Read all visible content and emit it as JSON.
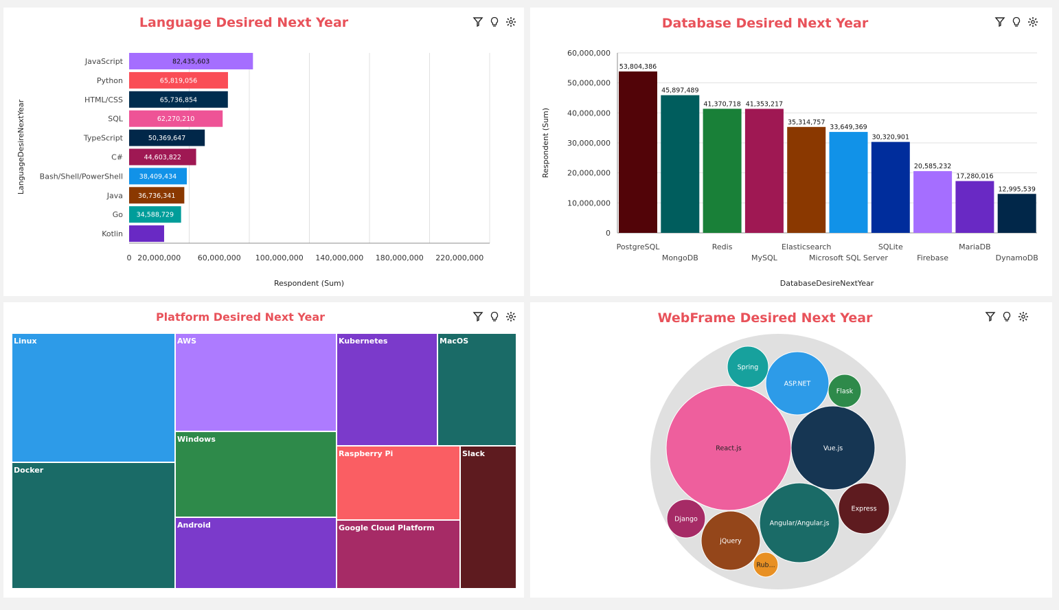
{
  "panels": {
    "language": {
      "title": "Language Desired Next Year"
    },
    "database": {
      "title": "Database Desired Next Year"
    },
    "platform": {
      "title": "Platform Desired Next Year"
    },
    "webframe": {
      "title": "WebFrame Desired Next Year"
    }
  },
  "icons": [
    "filter-icon",
    "lightbulb-icon",
    "settings-icon"
  ],
  "chart_data": [
    {
      "type": "bar",
      "orientation": "horizontal",
      "title": "Language Desired Next Year",
      "xlabel": "Respondent (Sum)",
      "ylabel": "LanguageDesireNextYear",
      "xlim": [
        0,
        240000000
      ],
      "xticks": [
        "0",
        "20,000,000",
        "60,000,000",
        "100,000,000",
        "140,000,000",
        "180,000,000",
        "220,000,000"
      ],
      "categories": [
        "JavaScript",
        "Python",
        "HTML/CSS",
        "SQL",
        "TypeScript",
        "C#",
        "Bash/Shell/PowerShell",
        "Java",
        "Go",
        "Kotlin"
      ],
      "values": [
        82435603,
        65819056,
        65736854,
        62270210,
        50369647,
        44603822,
        38409434,
        36736341,
        34588729,
        23300000
      ],
      "value_labels": [
        "82,435,603",
        "65,819,056",
        "65,736,854",
        "62,270,210",
        "50,369,647",
        "44,603,822",
        "38,409,434",
        "36,736,341",
        "34,588,729",
        ""
      ],
      "colors": [
        "#a56eff",
        "#fa4d56",
        "#002d4f",
        "#ee5396",
        "#012749",
        "#9f1853",
        "#1192e8",
        "#8a3800",
        "#009d9a",
        "#6929c4"
      ],
      "grid": true
    },
    {
      "type": "bar",
      "title": "Database Desired Next Year",
      "xlabel": "DatabaseDesireNextYear",
      "ylabel": "Respondent (Sum)",
      "ylim": [
        0,
        60000000
      ],
      "yticks": [
        "0",
        "10,000,000",
        "20,000,000",
        "30,000,000",
        "40,000,000",
        "50,000,000",
        "60,000,000"
      ],
      "categories": [
        "PostgreSQL",
        "MongoDB",
        "Redis",
        "MySQL",
        "Elasticsearch",
        "Microsoft SQL Server",
        "SQLite",
        "Firebase",
        "MariaDB",
        "DynamoDB"
      ],
      "values": [
        53804386,
        45897489,
        41370718,
        41353217,
        35314757,
        33649369,
        30320901,
        20585232,
        17280016,
        12995539
      ],
      "value_labels": [
        "53,804,386",
        "45,897,489",
        "41,370,718",
        "41,353,217",
        "35,314,757",
        "33,649,369",
        "30,320,901",
        "20,585,232",
        "17,280,016",
        "12,995,539"
      ],
      "colors": [
        "#520408",
        "#005d5d",
        "#198038",
        "#9f1853",
        "#8a3800",
        "#1192e8",
        "#002d9c",
        "#a56eff",
        "#6929c4",
        "#012749"
      ],
      "grid": true
    },
    {
      "type": "treemap",
      "title": "Platform Desired Next Year",
      "items": [
        {
          "label": "Linux",
          "color": "#2d9be8"
        },
        {
          "label": "Docker",
          "color": "#1a6b67"
        },
        {
          "label": "AWS",
          "color": "#ad7bff"
        },
        {
          "label": "Windows",
          "color": "#2e8a4a"
        },
        {
          "label": "Android",
          "color": "#7b3acb"
        },
        {
          "label": "Kubernetes",
          "color": "#7b3acb"
        },
        {
          "label": "MacOS",
          "color": "#1a6b67"
        },
        {
          "label": "Raspberry Pi",
          "color": "#fa5e63"
        },
        {
          "label": "Google Cloud Platform",
          "color": "#a62b66"
        },
        {
          "label": "Slack",
          "color": "#5e1b1f"
        }
      ]
    },
    {
      "type": "bubble",
      "title": "WebFrame Desired Next Year",
      "items": [
        {
          "label": "React.js",
          "color": "#ee5f9d"
        },
        {
          "label": "Vue.js",
          "color": "#163653"
        },
        {
          "label": "Angular/Angular.js",
          "color": "#1a6b67"
        },
        {
          "label": "ASP.NET",
          "color": "#2d9be8"
        },
        {
          "label": "jQuery",
          "color": "#94461a"
        },
        {
          "label": "Express",
          "color": "#5e1b1f"
        },
        {
          "label": "Spring",
          "color": "#17a19d"
        },
        {
          "label": "Flask",
          "color": "#2e8a4a"
        },
        {
          "label": "Django",
          "color": "#a62b66"
        },
        {
          "label": "Rub...",
          "color": "#e89023"
        }
      ],
      "container_color": "#e0e0e0"
    }
  ]
}
